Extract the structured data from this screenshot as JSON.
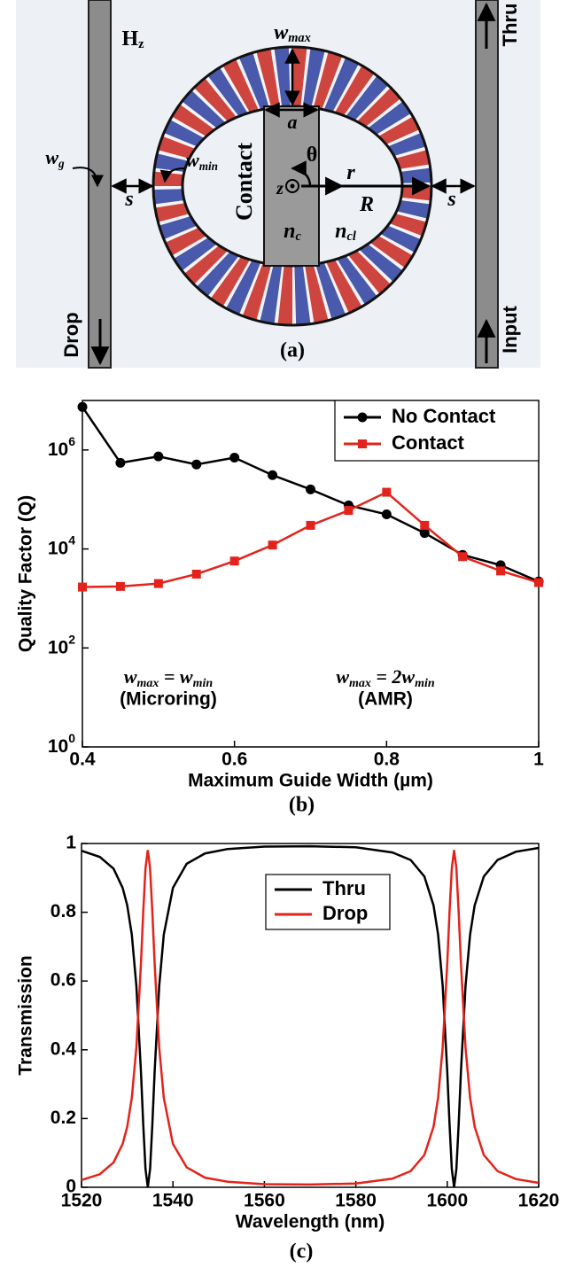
{
  "diagram": {
    "caption": "(a)",
    "labels": [
      {
        "text": "H",
        "sub": "z"
      },
      {
        "text": "w",
        "sub": "max"
      },
      {
        "text": "a"
      },
      {
        "text": "θ"
      },
      {
        "text": "w",
        "sub": "g"
      },
      {
        "text": "w",
        "sub": "min"
      },
      {
        "text": "s"
      },
      {
        "text": "z"
      },
      {
        "text": "r"
      },
      {
        "text": "R"
      },
      {
        "text": "s"
      },
      {
        "text": "Contact"
      },
      {
        "text": "n",
        "sub": "c"
      },
      {
        "text": "n",
        "sub": "cl"
      },
      {
        "text": "Drop"
      },
      {
        "text": "Thru"
      },
      {
        "text": "Input"
      }
    ]
  },
  "chart_data": [
    {
      "type": "line",
      "caption": "(b)",
      "xlabel": "Maximum Guide Width (µm)",
      "ylabel": "Quality Factor (Q)",
      "x": [
        0.4,
        0.45,
        0.5,
        0.55,
        0.6,
        0.65,
        0.7,
        0.75,
        0.8,
        0.85,
        0.9,
        0.95,
        1.0
      ],
      "series": [
        {
          "name": "No Contact",
          "color": "#000000",
          "marker": "circle",
          "values": [
            7400000,
            550000,
            740000,
            510000,
            700000,
            310000,
            160000,
            76000,
            50000,
            21000,
            7600,
            4700,
            2200
          ]
        },
        {
          "name": "Contact",
          "color": "#e3231b",
          "marker": "square",
          "values": [
            1700,
            1750,
            2000,
            3100,
            5700,
            12000,
            30000,
            60000,
            140000,
            30000,
            7000,
            3600,
            2100
          ]
        }
      ],
      "xlim": [
        0.4,
        1
      ],
      "xticks": [
        0.4,
        0.6,
        0.8,
        1
      ],
      "yscale": "log",
      "ylim": [
        1,
        10000000
      ],
      "yticks": [
        {
          "value": 1,
          "label": "10",
          "exponent": "0"
        },
        {
          "value": 100,
          "label": "10",
          "exponent": "2"
        },
        {
          "value": 10000,
          "label": "10",
          "exponent": "4"
        },
        {
          "value": 1000000,
          "label": "10",
          "exponent": "6"
        }
      ],
      "legend": "upper right",
      "annotations": [
        {
          "parts": [
            [
              "w",
              "max"
            ],
            [
              " = w",
              "min"
            ]
          ],
          "note": "(Microring)"
        },
        {
          "parts": [
            [
              "w",
              "max"
            ],
            [
              " = 2w",
              "min"
            ]
          ],
          "note": "(AMR)"
        }
      ]
    },
    {
      "type": "line",
      "caption": "(c)",
      "xlabel": "Wavelength (nm)",
      "ylabel": "Transmission",
      "x": [
        1520,
        1524,
        1527,
        1529,
        1530,
        1531,
        1532,
        1533,
        1533.5,
        1534,
        1534.5,
        1535,
        1535.5,
        1536,
        1537,
        1538,
        1540,
        1543,
        1547,
        1552,
        1560,
        1570,
        1580,
        1588,
        1592,
        1595,
        1597,
        1598,
        1599,
        1600,
        1600.5,
        1601,
        1601.5,
        1602,
        1602.5,
        1603,
        1604,
        1605,
        1606,
        1608,
        1611,
        1615,
        1620
      ],
      "series": [
        {
          "name": "Thru",
          "color": "#000000",
          "values": [
            0.979,
            0.961,
            0.927,
            0.871,
            0.82,
            0.735,
            0.586,
            0.337,
            0.184,
            0.053,
            0.0,
            0.053,
            0.184,
            0.337,
            0.586,
            0.735,
            0.871,
            0.941,
            0.971,
            0.984,
            0.991,
            0.992,
            0.989,
            0.974,
            0.952,
            0.904,
            0.82,
            0.735,
            0.586,
            0.337,
            0.184,
            0.053,
            0.0,
            0.053,
            0.184,
            0.337,
            0.586,
            0.735,
            0.82,
            0.904,
            0.952,
            0.976,
            0.987
          ]
        },
        {
          "name": "Drop",
          "color": "#e3231b",
          "values": [
            0.021,
            0.038,
            0.072,
            0.126,
            0.176,
            0.26,
            0.406,
            0.65,
            0.8,
            0.928,
            0.981,
            0.928,
            0.8,
            0.65,
            0.406,
            0.26,
            0.126,
            0.058,
            0.028,
            0.016,
            0.009,
            0.008,
            0.011,
            0.025,
            0.047,
            0.094,
            0.176,
            0.26,
            0.406,
            0.65,
            0.8,
            0.928,
            0.981,
            0.928,
            0.8,
            0.65,
            0.406,
            0.26,
            0.176,
            0.094,
            0.047,
            0.024,
            0.013
          ]
        }
      ],
      "xlim": [
        1520,
        1620
      ],
      "xticks": [
        1520,
        1540,
        1560,
        1580,
        1600,
        1620
      ],
      "ylim": [
        0,
        1
      ],
      "yticks": [
        0,
        0.2,
        0.4,
        0.6,
        0.8,
        1
      ],
      "legend": "upper center"
    }
  ]
}
